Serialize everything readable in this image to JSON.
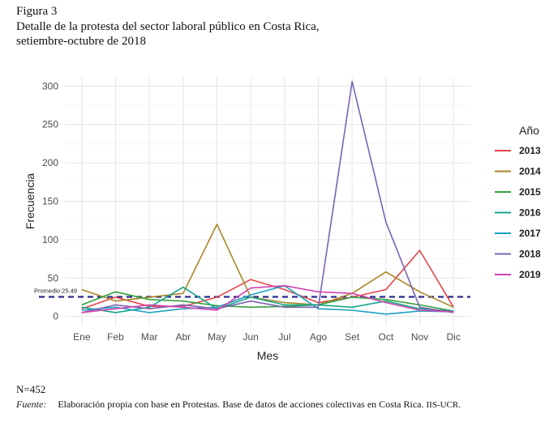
{
  "figure": {
    "label": "Figura 3",
    "title_line1": "Detalle de la protesta del sector laboral público en Costa Rica,",
    "title_line2": "setiembre-octubre de 2018"
  },
  "note": "N=452",
  "source": {
    "label": "Fuente:",
    "text": "Elaboración propia con base en Protestas. Base de datos de acciones colectivas en Costa Rica.",
    "org": "IIS-UCR."
  },
  "chart_data": {
    "type": "line",
    "xlabel": "Mes",
    "ylabel": "Frecuencia",
    "categories": [
      "Ene",
      "Feb",
      "Mar",
      "Abr",
      "May",
      "Jun",
      "Jul",
      "Ago",
      "Set",
      "Oct",
      "Nov",
      "Dic"
    ],
    "ylim": [
      -12,
      312
    ],
    "yticks": [
      0,
      50,
      100,
      150,
      200,
      250,
      300
    ],
    "grid": true,
    "legend_title": "Año",
    "legend_position": "right",
    "reference_line": {
      "value": 25.49,
      "label": "Promedio:25.49",
      "color": "#2b2b8c"
    },
    "series": [
      {
        "name": "2013",
        "color": "#e3454a",
        "values": [
          10,
          25,
          13,
          13,
          25,
          48,
          35,
          18,
          25,
          35,
          86,
          12
        ]
      },
      {
        "name": "2014",
        "color": "#a88628",
        "values": [
          35,
          20,
          25,
          30,
          120,
          25,
          18,
          15,
          30,
          58,
          32,
          12
        ]
      },
      {
        "name": "2015",
        "color": "#35a33e",
        "values": [
          15,
          32,
          22,
          20,
          14,
          12,
          13,
          15,
          25,
          22,
          15,
          7
        ]
      },
      {
        "name": "2016",
        "color": "#18a58a",
        "values": [
          12,
          5,
          12,
          38,
          10,
          25,
          15,
          15,
          12,
          20,
          10,
          7
        ]
      },
      {
        "name": "2017",
        "color": "#1ea2c0",
        "values": [
          8,
          12,
          5,
          10,
          12,
          28,
          40,
          10,
          8,
          3,
          7,
          6
        ]
      },
      {
        "name": "2018",
        "color": "#7b63b3",
        "values": [
          5,
          15,
          10,
          15,
          10,
          20,
          12,
          12,
          306,
          123,
          12,
          5
        ]
      },
      {
        "name": "2019",
        "color": "#d044b0",
        "values": [
          5,
          10,
          15,
          12,
          8,
          37,
          40,
          32,
          30,
          18,
          8,
          6
        ]
      }
    ]
  }
}
